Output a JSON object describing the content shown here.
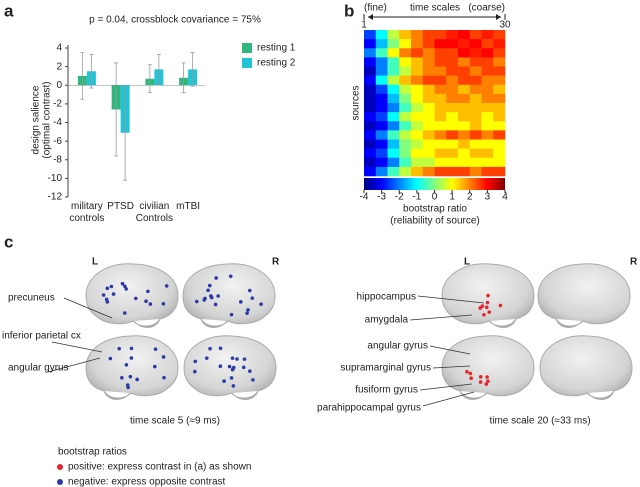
{
  "panel_labels": [
    "a",
    "b",
    "c"
  ],
  "chart_data": [
    {
      "type": "bar",
      "title": "p = 0.04, crossblock covariance = 75%",
      "ylabel": [
        "design salience",
        "(optimal contrast)"
      ],
      "categories": [
        "military controls",
        "PTSD",
        "civilian Controls",
        "mTBI"
      ],
      "series": [
        {
          "name": "resting 1",
          "color": "#2fb67c",
          "values": [
            1.0,
            -2.6,
            0.7,
            0.8
          ],
          "errors": [
            2.5,
            5.0,
            1.5,
            1.6
          ]
        },
        {
          "name": "resting 2",
          "color": "#22c3d6",
          "values": [
            1.5,
            -5.1,
            1.7,
            1.7
          ],
          "errors": [
            1.8,
            5.1,
            1.6,
            1.8
          ]
        }
      ],
      "ylim": [
        -12,
        4
      ],
      "yticks": [
        -12,
        -10,
        -8,
        -6,
        -4,
        -2,
        0,
        2,
        4
      ],
      "legend": "upper right"
    },
    {
      "type": "heatmap",
      "x_label_left": "(fine)",
      "xlabel": "time scales",
      "x_label_right": "(coarse)",
      "xlim": [
        1,
        30
      ],
      "xticks": [
        1,
        30
      ],
      "ylabel": "sources",
      "colormap": "jet",
      "clim": [
        -4,
        4
      ],
      "colorbar_ticks": [
        -4,
        -3,
        -2,
        -1,
        0,
        1,
        2,
        3,
        4
      ],
      "colorbar_label": [
        "bootstrap ratio",
        "(reliability of source)"
      ],
      "z": [
        [
          -2.5,
          -1,
          0.5,
          1.5,
          2,
          2.5,
          2.5,
          2.8,
          3,
          2.5,
          2.8,
          2.5
        ],
        [
          -3,
          -1.5,
          0,
          1,
          2,
          2.5,
          3,
          3,
          2.8,
          3,
          2.5,
          2.8
        ],
        [
          -2,
          -0.5,
          1,
          2,
          2.5,
          2,
          2.5,
          2.5,
          3,
          2.8,
          3,
          2.5
        ],
        [
          -3,
          -2,
          -0.5,
          1,
          1.5,
          2,
          2.5,
          2.5,
          2,
          2.5,
          2.5,
          2
        ],
        [
          -3.5,
          -2,
          -0.5,
          0.5,
          1.5,
          2,
          2,
          2.5,
          2.5,
          2,
          2.5,
          2.5
        ],
        [
          -3,
          -1,
          0.5,
          1.5,
          2,
          2.5,
          2.5,
          2,
          2.5,
          2.5,
          2,
          2
        ],
        [
          -3.5,
          -2.5,
          -1,
          0.5,
          1,
          1.5,
          2,
          2,
          1.5,
          2,
          2,
          1.5
        ],
        [
          -3.5,
          -3,
          -1.5,
          0,
          1,
          1.5,
          1.5,
          2,
          2,
          1.5,
          2,
          2
        ],
        [
          -3.5,
          -3,
          -2,
          -0.5,
          0.5,
          1,
          1.5,
          1.5,
          1.5,
          1.5,
          1.5,
          1.5
        ],
        [
          -3,
          -2.5,
          -1,
          0.5,
          1,
          1,
          1.5,
          1,
          1.5,
          1.5,
          1,
          1.5
        ],
        [
          -3.5,
          -3,
          -2,
          -0.5,
          0.5,
          1,
          1,
          1,
          1,
          1.5,
          1,
          1
        ],
        [
          -3,
          -2,
          -0.5,
          0.5,
          1,
          1.5,
          2,
          2.5,
          2,
          2.5,
          2,
          2.5
        ],
        [
          -3.5,
          -3,
          -1.5,
          0,
          0.5,
          1,
          1,
          1,
          1.5,
          1,
          1,
          1
        ],
        [
          -3,
          -2.5,
          -1,
          0,
          1,
          1,
          1.5,
          1.5,
          1,
          1.5,
          1.5,
          1
        ],
        [
          -3.5,
          -3,
          -2,
          -0.5,
          0.5,
          0.5,
          1,
          1,
          1,
          1,
          1,
          1
        ],
        [
          -3,
          -2,
          -0.5,
          0.5,
          1.5,
          2,
          2.5,
          2.5,
          2.5,
          2,
          2.5,
          2.5
        ]
      ]
    }
  ],
  "brain_figure": {
    "left": {
      "hemispheres": [
        "L",
        "R"
      ],
      "annotations": [
        "precuneus",
        "inferior parietal cx",
        "angular gyrus"
      ],
      "caption": "time scale 5 (≈9 ms)"
    },
    "right": {
      "hemispheres": [
        "L",
        "R"
      ],
      "annotations": [
        "hippocampus",
        "amygdala",
        "angular gyrus",
        "supramarginal gyrus",
        "fusiform gyrus",
        "parahippocampal gyrus"
      ],
      "caption": "time scale 20 (≈33 ms)"
    },
    "legend": {
      "title": "bootstrap ratios",
      "items": [
        {
          "label": "positive: express contrast in (a) as shown",
          "color": "#e3262c"
        },
        {
          "label": "negative: express opposite contrast",
          "color": "#2b3aa6"
        }
      ]
    }
  }
}
